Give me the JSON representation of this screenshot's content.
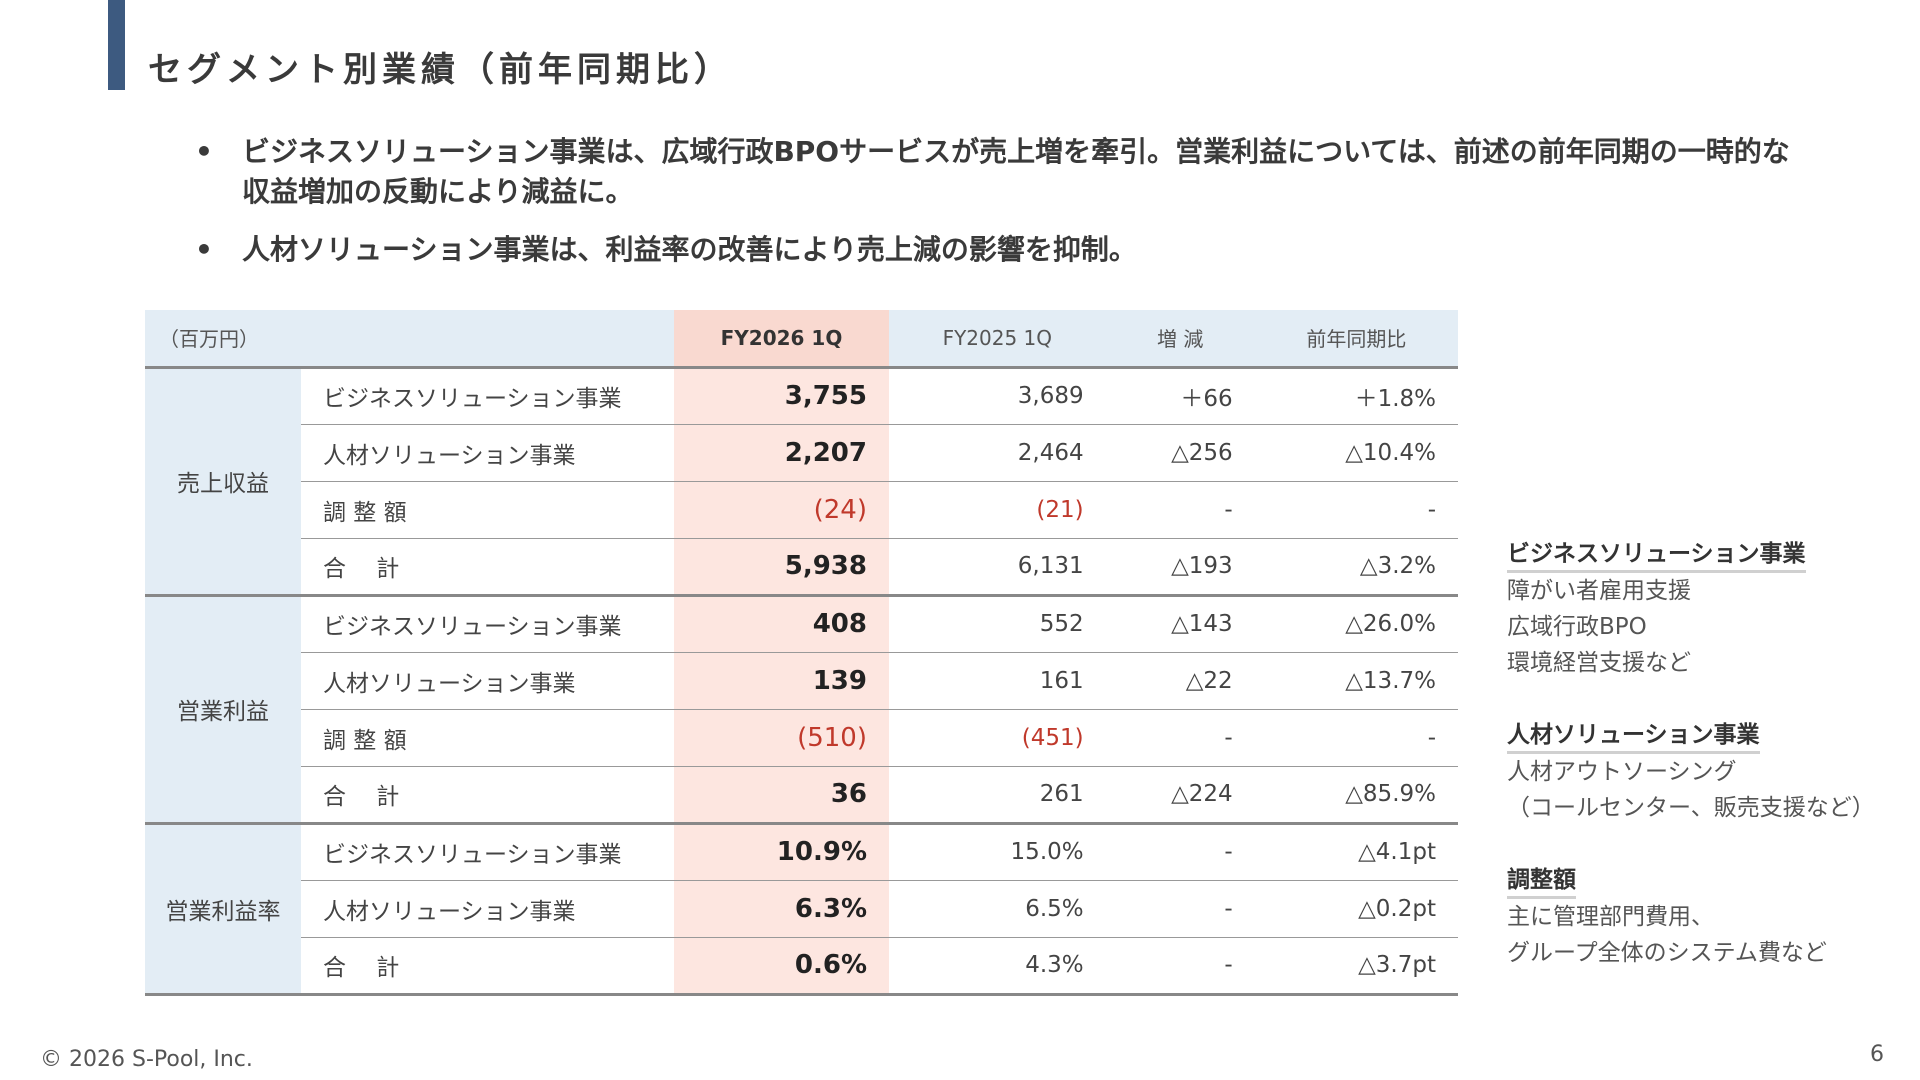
{
  "title": "セグメント別業績（前年同期比）",
  "bullets": [
    "ビジネスソリューション事業は、広域行政BPOサービスが売上増を牽引。営業利益については、前述の前年同期の一時的な収益増加の反動により減益に。",
    "人材ソリューション事業は、利益率の改善により売上減の影響を抑制。"
  ],
  "table": {
    "unit": "（百万円）",
    "headers": [
      "FY2026 1Q",
      "FY2025 1Q",
      "増 減",
      "前年同期比"
    ],
    "groups": [
      {
        "category": "売上収益",
        "rows": [
          {
            "label": "ビジネスソリューション事業",
            "values": [
              "3,755",
              "3,689",
              "＋66",
              "＋1.8%"
            ]
          },
          {
            "label": "人材ソリューション事業",
            "values": [
              "2,207",
              "2,464",
              "△256",
              "△10.4%"
            ]
          },
          {
            "label": "調 整 額",
            "values": [
              "(24)",
              "(21)",
              "-",
              "-"
            ]
          },
          {
            "label": "合　 計",
            "values": [
              "5,938",
              "6,131",
              "△193",
              "△3.2%"
            ]
          }
        ]
      },
      {
        "category": "営業利益",
        "rows": [
          {
            "label": "ビジネスソリューション事業",
            "values": [
              "408",
              "552",
              "△143",
              "△26.0%"
            ]
          },
          {
            "label": "人材ソリューション事業",
            "values": [
              "139",
              "161",
              "△22",
              "△13.7%"
            ]
          },
          {
            "label": "調 整 額",
            "values": [
              "(510)",
              "(451)",
              "-",
              "-"
            ]
          },
          {
            "label": "合　 計",
            "values": [
              "36",
              "261",
              "△224",
              "△85.9%"
            ]
          }
        ]
      },
      {
        "category": "営業利益率",
        "rows": [
          {
            "label": "ビジネスソリューション事業",
            "values": [
              "10.9%",
              "15.0%",
              "-",
              "△4.1pt"
            ]
          },
          {
            "label": "人材ソリューション事業",
            "values": [
              "6.3%",
              "6.5%",
              "-",
              "△0.2pt"
            ]
          },
          {
            "label": "合　 計",
            "values": [
              "0.6%",
              "4.3%",
              "-",
              "△3.7pt"
            ]
          }
        ]
      }
    ]
  },
  "side_notes": [
    {
      "heading": "ビジネスソリューション事業",
      "lines": [
        "障がい者雇用支援",
        "広域行政BPO",
        "環境経営支援など"
      ]
    },
    {
      "heading": "人材ソリューション事業",
      "lines": [
        "人材アウトソーシング",
        "（コールセンター、販売支援など）"
      ]
    },
    {
      "heading": "調整額",
      "lines": [
        "主に管理部門費用、",
        "グループ全体のシステム費など"
      ]
    }
  ],
  "footer": {
    "copyright": "© 2026 S-Pool, Inc.",
    "page_number": "6"
  },
  "colors": {
    "accent_bar": "#3d5a80",
    "header_bg": "#e3edf5",
    "highlight_col": "#fde6e0",
    "negative_adjustment": "#c0392b"
  }
}
